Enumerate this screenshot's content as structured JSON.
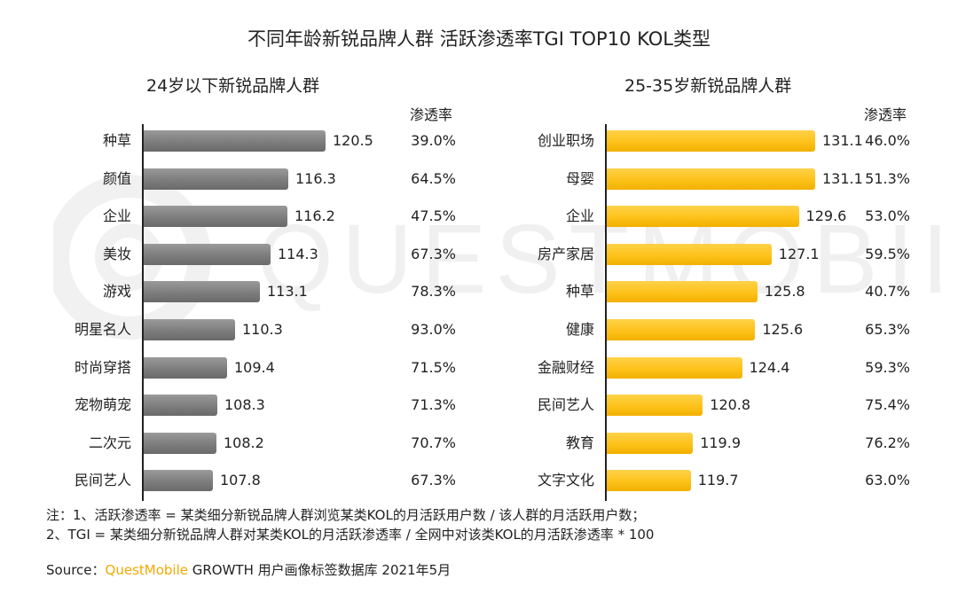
{
  "title": "不同年龄新锐品牌人群 活跃渗透率TGI TOP10 KOL类型",
  "watermark": "QUESTMOBILE",
  "chart_data": [
    {
      "type": "bar",
      "orientation": "horizontal",
      "title": "24岁以下新锐品牌人群",
      "penetration_header": "渗透率",
      "categories": [
        "种草",
        "颜值",
        "企业",
        "美妆",
        "游戏",
        "明星名人",
        "时尚穿搭",
        "宠物萌宠",
        "二次元",
        "民间艺人"
      ],
      "values": [
        120.5,
        116.3,
        116.2,
        114.3,
        113.1,
        110.3,
        109.4,
        108.3,
        108.2,
        107.8
      ],
      "value_labels": [
        "120.5",
        "116.3",
        "116.2",
        "114.3",
        "113.1",
        "110.3",
        "109.4",
        "108.3",
        "108.2",
        "107.8"
      ],
      "penetration": [
        "39.0%",
        "64.5%",
        "47.5%",
        "67.3%",
        "78.3%",
        "93.0%",
        "71.5%",
        "71.3%",
        "70.7%",
        "67.3%"
      ],
      "bar_color": "#808080",
      "xlim": [
        100,
        132
      ]
    },
    {
      "type": "bar",
      "orientation": "horizontal",
      "title": "25-35岁新锐品牌人群",
      "penetration_header": "渗透率",
      "categories": [
        "创业职场",
        "母婴",
        "企业",
        "房产家居",
        "种草",
        "健康",
        "金融财经",
        "民间艺人",
        "教育",
        "文字文化"
      ],
      "values": [
        131.1,
        131.1,
        129.6,
        127.1,
        125.8,
        125.6,
        124.4,
        120.8,
        119.9,
        119.7
      ],
      "value_labels": [
        "131.1",
        "131.1",
        "129.6",
        "127.1",
        "125.8",
        "125.6",
        "124.4",
        "120.8",
        "119.9",
        "119.7"
      ],
      "penetration": [
        "46.0%",
        "51.3%",
        "53.0%",
        "59.5%",
        "40.7%",
        "65.3%",
        "59.3%",
        "75.4%",
        "76.2%",
        "63.0%"
      ],
      "bar_color": "#fdc21a",
      "xlim": [
        112,
        135
      ]
    }
  ],
  "notes": {
    "line1": "注：1、活跃渗透率 = 某类细分新锐品牌人群浏览某类KOL的月活跃用户数 / 该人群的月活跃用户数；",
    "line2": "2、TGI = 某类细分新锐品牌人群对某类KOL的月活跃渗透率 / 全网中对该类KOL的月活跃渗透率 * 100"
  },
  "source": {
    "prefix": "Source：",
    "brand": "QuestMobile",
    "rest": " GROWTH 用户画像标签数据库 2021年5月"
  }
}
